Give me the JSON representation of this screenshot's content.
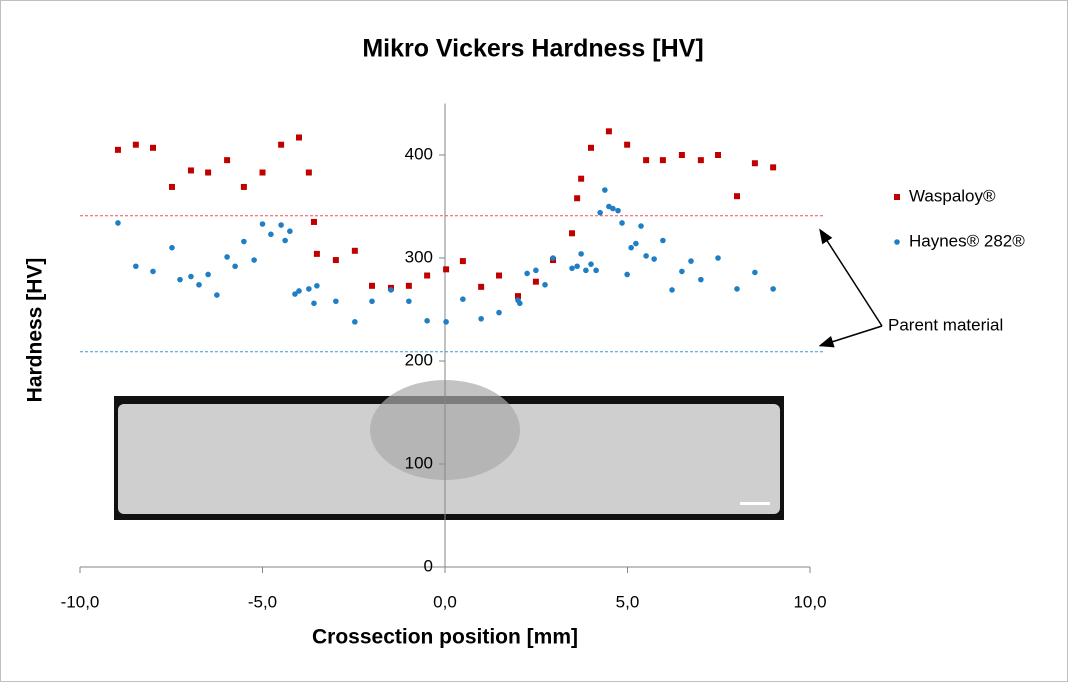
{
  "chart_data": {
    "type": "scatter",
    "title": "Mikro Vickers Hardness [HV]",
    "x_label": "Crossection position [mm]",
    "y_label": "Hardness [HV]",
    "xlim": [
      -10,
      10
    ],
    "xticks": [
      {
        "value": -10,
        "label": "-10,0"
      },
      {
        "value": -5,
        "label": "-5,0"
      },
      {
        "value": 0,
        "label": "0,0"
      },
      {
        "value": 5,
        "label": "5,0"
      },
      {
        "value": 10,
        "label": "10,0"
      }
    ],
    "ylim": [
      0,
      450
    ],
    "yticks": [
      0,
      100,
      200,
      300,
      400
    ],
    "legend": "right",
    "annotation": "Parent material",
    "reference_lines": [
      {
        "value": 341,
        "color": "#e8505b"
      },
      {
        "value": 209,
        "color": "#3a9ad9"
      }
    ],
    "series": [
      {
        "name": "Waspaloy®",
        "color": "#c00000",
        "marker": "square",
        "x": [
          -8.96,
          -8.47,
          -8.0,
          -7.48,
          -6.96,
          -6.49,
          -5.97,
          -5.51,
          -5.0,
          -4.49,
          -4.0,
          -3.73,
          -3.59,
          -3.51,
          -2.99,
          -2.47,
          -2.0,
          -1.48,
          -0.99,
          -0.49,
          0.03,
          0.49,
          0.99,
          1.48,
          2.0,
          2.49,
          2.96,
          3.48,
          3.62,
          3.73,
          4.0,
          4.49,
          4.99,
          5.51,
          5.97,
          6.49,
          7.01,
          7.48,
          8.0,
          8.49,
          8.99
        ],
        "values": [
          405,
          410,
          407,
          369,
          385,
          383,
          395,
          369,
          383,
          410,
          417,
          383,
          335,
          304,
          298,
          307,
          273,
          271,
          273,
          283,
          289,
          297,
          272,
          283,
          263,
          277,
          298,
          324,
          358,
          377,
          407,
          423,
          410,
          395,
          395,
          400,
          395,
          400,
          360,
          392,
          388
        ]
      },
      {
        "name": "Haynes® 282®",
        "color": "#1f7fc4",
        "marker": "circle",
        "x": [
          -8.96,
          -8.47,
          -8.0,
          -7.48,
          -7.26,
          -6.96,
          -6.74,
          -6.49,
          -6.25,
          -5.97,
          -5.75,
          -5.51,
          -5.23,
          -5.0,
          -4.77,
          -4.49,
          -4.38,
          -4.25,
          -4.11,
          -4.0,
          -3.73,
          -3.59,
          -3.51,
          -2.99,
          -2.47,
          -2.0,
          -1.48,
          -0.99,
          -0.49,
          0.03,
          0.49,
          0.99,
          1.48,
          2.0,
          2.05,
          2.25,
          2.49,
          2.74,
          2.96,
          3.48,
          3.62,
          3.73,
          3.86,
          4.0,
          4.14,
          4.25,
          4.38,
          4.49,
          4.6,
          4.74,
          4.85,
          4.99,
          5.1,
          5.23,
          5.37,
          5.51,
          5.73,
          5.97,
          6.22,
          6.49,
          6.74,
          7.01,
          7.48,
          8.0,
          8.49,
          8.99
        ],
        "values": [
          334,
          292,
          287,
          310,
          279,
          282,
          274,
          284,
          264,
          301,
          292,
          316,
          298,
          333,
          323,
          332,
          317,
          326,
          265,
          268,
          270,
          256,
          273,
          258,
          238,
          258,
          269,
          258,
          239,
          238,
          260,
          241,
          247,
          259,
          256,
          285,
          288,
          274,
          300,
          290,
          292,
          304,
          288,
          294,
          288,
          344,
          366,
          350,
          348,
          346,
          334,
          284,
          310,
          314,
          331,
          302,
          299,
          317,
          269,
          287,
          297,
          279,
          300,
          270,
          286,
          270
        ]
      }
    ]
  }
}
